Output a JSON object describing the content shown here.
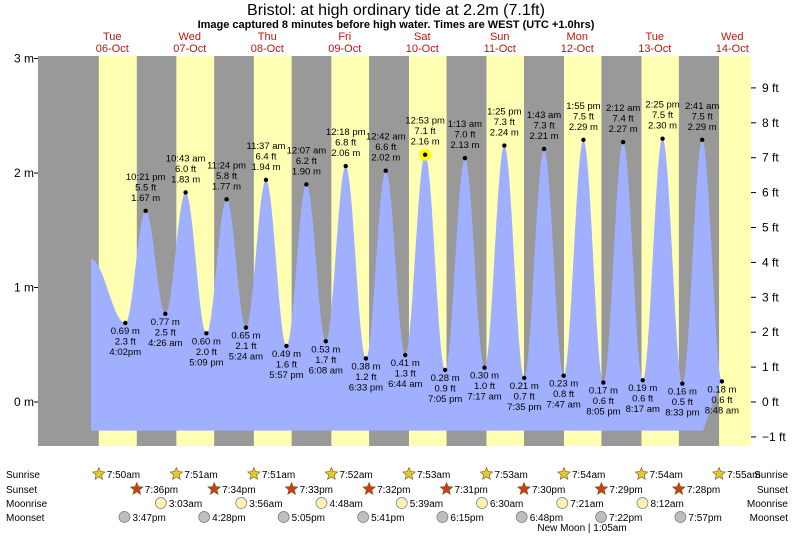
{
  "title": "Bristol: at high  ordinary tide at 2.2m (7.1ft)",
  "subtitle": "Image captured 8 minutes before high water. Times are WEST (UTC +1.0hrs)",
  "colors": {
    "day_bg": "#ffffb4",
    "night_bg": "#999999",
    "tide_fill": "#a0b0ff",
    "day_label": "#c0140c",
    "sunrise_star": "#e6c832",
    "sunset_star": "#d03c14",
    "moonrise": "#fff0b4",
    "moonset": "#bebebe",
    "now_marker": "#ffff00"
  },
  "days": [
    {
      "dow": "Tue",
      "date": "06-Oct"
    },
    {
      "dow": "Wed",
      "date": "07-Oct"
    },
    {
      "dow": "Thu",
      "date": "08-Oct"
    },
    {
      "dow": "Fri",
      "date": "09-Oct"
    },
    {
      "dow": "Sat",
      "date": "10-Oct"
    },
    {
      "dow": "Sun",
      "date": "11-Oct"
    },
    {
      "dow": "Mon",
      "date": "12-Oct"
    },
    {
      "dow": "Tue",
      "date": "13-Oct"
    },
    {
      "dow": "Wed",
      "date": "14-Oct"
    }
  ],
  "chart_data": {
    "type": "area",
    "title": "Bristol: at high  ordinary tide at 2.2m (7.1ft)",
    "x_range_hours_from_06_Oct_midnight": [
      -10.7,
      201
    ],
    "y_left": {
      "unit": "m",
      "range": [
        -0.4,
        3.0
      ],
      "ticks": [
        {
          "v": 0,
          "label": "0 m"
        },
        {
          "v": 1,
          "label": "1 m"
        },
        {
          "v": 2,
          "label": "2 m"
        },
        {
          "v": 3,
          "label": "3 m"
        }
      ]
    },
    "y_right": {
      "unit": "ft",
      "range_m": [
        -0.4,
        3.0
      ],
      "ticks": [
        {
          "v": -1,
          "label": "−1 ft"
        },
        {
          "v": 0,
          "label": "0 ft"
        },
        {
          "v": 1,
          "label": "1 ft"
        },
        {
          "v": 2,
          "label": "2 ft"
        },
        {
          "v": 3,
          "label": "3 ft"
        },
        {
          "v": 4,
          "label": "4 ft"
        },
        {
          "v": 5,
          "label": "5 ft"
        },
        {
          "v": 6,
          "label": "6 ft"
        },
        {
          "v": 7,
          "label": "7 ft"
        },
        {
          "v": 8,
          "label": "8 ft"
        },
        {
          "v": 9,
          "label": "9 ft"
        }
      ]
    },
    "sun": [
      {
        "rise": "7:50",
        "set": "19:36"
      },
      {
        "rise": "7:51",
        "set": "19:34"
      },
      {
        "rise": "7:51",
        "set": "19:33"
      },
      {
        "rise": "7:52",
        "set": "19:32"
      },
      {
        "rise": "7:53",
        "set": "19:31"
      },
      {
        "rise": "7:53",
        "set": "19:30"
      },
      {
        "rise": "7:54",
        "set": "19:29"
      },
      {
        "rise": "7:54",
        "set": "19:28"
      },
      {
        "rise": "7:55",
        "set": ""
      }
    ],
    "tides": [
      {
        "kind": "low",
        "day": 0,
        "time": "4:02pm",
        "m": "0.69 m",
        "ft": "2.3 ft",
        "h": 0.69
      },
      {
        "kind": "high",
        "day": 0,
        "time": "10:21 pm",
        "m": "1.67 m",
        "ft": "5.5 ft",
        "h": 1.67
      },
      {
        "kind": "low",
        "day": 1,
        "time": "4:26 am",
        "m": "0.77 m",
        "ft": "2.5 ft",
        "h": 0.77
      },
      {
        "kind": "high",
        "day": 1,
        "time": "10:43 am",
        "m": "1.83 m",
        "ft": "6.0 ft",
        "h": 1.83
      },
      {
        "kind": "low",
        "day": 1,
        "time": "5:09 pm",
        "m": "0.60 m",
        "ft": "2.0 ft",
        "h": 0.6
      },
      {
        "kind": "high",
        "day": 1,
        "time": "11:24 pm",
        "m": "1.77 m",
        "ft": "5.8 ft",
        "h": 1.77
      },
      {
        "kind": "low",
        "day": 2,
        "time": "5:24 am",
        "m": "0.65 m",
        "ft": "2.1 ft",
        "h": 0.65
      },
      {
        "kind": "high",
        "day": 2,
        "time": "11:37 am",
        "m": "1.94 m",
        "ft": "6.4 ft",
        "h": 1.94
      },
      {
        "kind": "low",
        "day": 2,
        "time": "5:57 pm",
        "m": "0.49 m",
        "ft": "1.6 ft",
        "h": 0.49
      },
      {
        "kind": "high",
        "day": 3,
        "time": "12:07 am",
        "m": "1.90 m",
        "ft": "6.2 ft",
        "h": 1.9
      },
      {
        "kind": "low",
        "day": 3,
        "time": "6:08 am",
        "m": "0.53 m",
        "ft": "1.7 ft",
        "h": 0.53
      },
      {
        "kind": "high",
        "day": 3,
        "time": "12:18 pm",
        "m": "2.06 m",
        "ft": "6.8 ft",
        "h": 2.06
      },
      {
        "kind": "low",
        "day": 3,
        "time": "6:33 pm",
        "m": "0.38 m",
        "ft": "1.2 ft",
        "h": 0.38
      },
      {
        "kind": "high",
        "day": 4,
        "time": "12:42 am",
        "m": "2.02 m",
        "ft": "6.6 ft",
        "h": 2.02
      },
      {
        "kind": "low",
        "day": 4,
        "time": "6:44 am",
        "m": "0.41 m",
        "ft": "1.3 ft",
        "h": 0.41
      },
      {
        "kind": "high",
        "day": 4,
        "time": "12:53 pm",
        "m": "2.16 m",
        "ft": "7.1 ft",
        "h": 2.16
      },
      {
        "kind": "low",
        "day": 4,
        "time": "7:05 pm",
        "m": "0.28 m",
        "ft": "0.9 ft",
        "h": 0.28
      },
      {
        "kind": "high",
        "day": 5,
        "time": "1:13 am",
        "m": "2.13 m",
        "ft": "7.0 ft",
        "h": 2.13
      },
      {
        "kind": "low",
        "day": 5,
        "time": "7:17 am",
        "m": "0.30 m",
        "ft": "1.0 ft",
        "h": 0.3
      },
      {
        "kind": "high",
        "day": 5,
        "time": "1:25 pm",
        "m": "2.24 m",
        "ft": "7.3 ft",
        "h": 2.24
      },
      {
        "kind": "low",
        "day": 5,
        "time": "7:35 pm",
        "m": "0.21 m",
        "ft": "0.7 ft",
        "h": 0.21
      },
      {
        "kind": "high",
        "day": 6,
        "time": "1:43 am",
        "m": "2.21 m",
        "ft": "7.3 ft",
        "h": 2.21
      },
      {
        "kind": "low",
        "day": 6,
        "time": "7:47 am",
        "m": "0.23 m",
        "ft": "0.8 ft",
        "h": 0.23
      },
      {
        "kind": "high",
        "day": 6,
        "time": "1:55 pm",
        "m": "2.29 m",
        "ft": "7.5 ft",
        "h": 2.29
      },
      {
        "kind": "low",
        "day": 6,
        "time": "8:05 pm",
        "m": "0.17 m",
        "ft": "0.6 ft",
        "h": 0.17
      },
      {
        "kind": "high",
        "day": 7,
        "time": "2:12 am",
        "m": "2.27 m",
        "ft": "7.4 ft",
        "h": 2.27
      },
      {
        "kind": "low",
        "day": 7,
        "time": "8:17 am",
        "m": "0.19 m",
        "ft": "0.6 ft",
        "h": 0.19
      },
      {
        "kind": "high",
        "day": 7,
        "time": "2:25 pm",
        "m": "2.30 m",
        "ft": "7.5 ft",
        "h": 2.3
      },
      {
        "kind": "low",
        "day": 7,
        "time": "8:33 pm",
        "m": "0.16 m",
        "ft": "0.5 ft",
        "h": 0.16
      },
      {
        "kind": "high",
        "day": 8,
        "time": "2:41 am",
        "m": "2.29 m",
        "ft": "7.5 ft",
        "h": 2.29
      },
      {
        "kind": "low",
        "day": 8,
        "time": "8:48 am",
        "m": "0.18 m",
        "ft": "0.6 ft",
        "h": 0.18
      }
    ],
    "current_marker": {
      "tide_index": 15
    }
  },
  "astro": {
    "row_labels": {
      "sunrise": "Sunrise",
      "sunset": "Sunset",
      "moonrise": "Moonrise",
      "moonset": "Moonset"
    },
    "sunrise": [
      {
        "day": 0,
        "label": "7:50am"
      },
      {
        "day": 1,
        "label": "7:51am"
      },
      {
        "day": 2,
        "label": "7:51am"
      },
      {
        "day": 3,
        "label": "7:52am"
      },
      {
        "day": 4,
        "label": "7:53am"
      },
      {
        "day": 5,
        "label": "7:53am"
      },
      {
        "day": 6,
        "label": "7:54am"
      },
      {
        "day": 7,
        "label": "7:54am"
      },
      {
        "day": 8,
        "label": "7:55am"
      }
    ],
    "sunset": [
      {
        "day": 0,
        "label": "7:36pm"
      },
      {
        "day": 1,
        "label": "7:34pm"
      },
      {
        "day": 2,
        "label": "7:33pm"
      },
      {
        "day": 3,
        "label": "7:32pm"
      },
      {
        "day": 4,
        "label": "7:31pm"
      },
      {
        "day": 5,
        "label": "7:30pm"
      },
      {
        "day": 6,
        "label": "7:29pm"
      },
      {
        "day": 7,
        "label": "7:28pm"
      }
    ],
    "moonrise": [
      {
        "day": 1,
        "label": "3:03am"
      },
      {
        "day": 2,
        "label": "3:56am"
      },
      {
        "day": 3,
        "label": "4:48am"
      },
      {
        "day": 4,
        "label": "5:39am"
      },
      {
        "day": 5,
        "label": "6:30am"
      },
      {
        "day": 6,
        "label": "7:21am"
      },
      {
        "day": 7,
        "label": "8:12am"
      }
    ],
    "moonset": [
      {
        "day": 0,
        "label": "3:47pm"
      },
      {
        "day": 1,
        "label": "4:28pm"
      },
      {
        "day": 2,
        "label": "5:05pm"
      },
      {
        "day": 3,
        "label": "5:41pm"
      },
      {
        "day": 4,
        "label": "6:15pm"
      },
      {
        "day": 5,
        "label": "6:48pm"
      },
      {
        "day": 6,
        "label": "7:22pm"
      },
      {
        "day": 7,
        "label": "7:57pm"
      }
    ],
    "moon_phase": "New Moon | 1:05am"
  }
}
